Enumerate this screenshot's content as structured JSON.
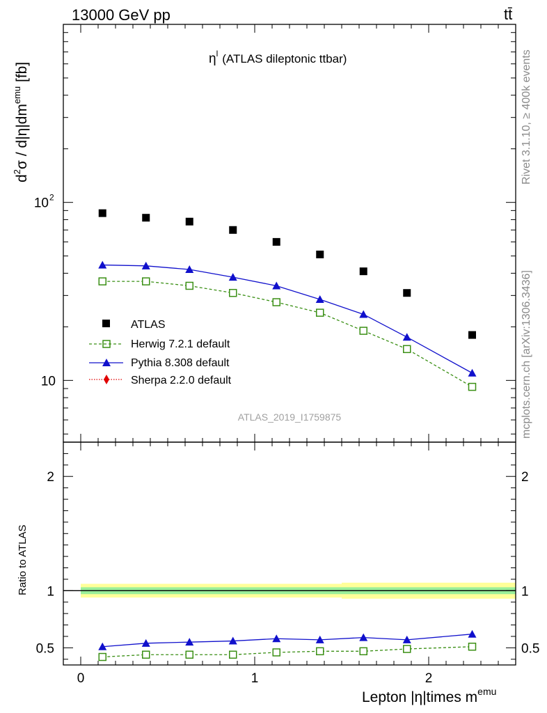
{
  "header": {
    "left": "13000 GeV pp",
    "right": "tt̄"
  },
  "side": {
    "rivet": "Rivet 3.1.10, ≥ 400k events",
    "mcplots": "mcplots.cern.ch [arXiv:1306.3436]"
  },
  "plot_title": {
    "symbol": "η",
    "sup": "l",
    "text": "(ATLAS dileptonic ttbar)"
  },
  "watermark": "ATLAS_2019_I1759875",
  "ylabel_main": {
    "p1": "d",
    "s1": "2",
    "p2": "σ / d|η|dm",
    "s2": "emu",
    "p3": " [fb]"
  },
  "ylabel_ratio": "Ratio to ATLAS",
  "xlabel": {
    "main": "Lepton |η|times m",
    "sup": "emu"
  },
  "legend": {
    "atlas": "ATLAS",
    "herwig": "Herwig 7.2.1 default",
    "pythia": "Pythia 8.308 default",
    "sherpa": "Sherpa 2.2.0 default"
  },
  "colors": {
    "atlas": "#000000",
    "herwig": "#3a8f14",
    "pythia": "#1010cc",
    "sherpa": "#e00000",
    "band_outer": "#ffff99",
    "band_inner": "#99ee99"
  },
  "chart_data": {
    "type": "scatter",
    "x": [
      0.125,
      0.375,
      0.625,
      0.875,
      1.125,
      1.375,
      1.625,
      1.875,
      2.25
    ],
    "xlim": [
      -0.1,
      2.5
    ],
    "x_ticks": [
      "0",
      "1",
      "2"
    ],
    "main": {
      "yscale": "log",
      "ylim": [
        4.5,
        1000
      ],
      "y_ticks": [
        "10",
        "10^2"
      ],
      "series": [
        {
          "name": "ATLAS",
          "values": [
            87,
            82,
            78,
            70,
            60,
            51,
            41,
            31,
            18
          ]
        },
        {
          "name": "Herwig 7.2.1 default",
          "values": [
            36,
            36,
            34,
            31,
            27.5,
            24,
            19,
            15,
            9.2
          ]
        },
        {
          "name": "Pythia 8.308 default",
          "values": [
            44.5,
            44,
            42,
            38,
            34,
            28.5,
            23.5,
            17.5,
            11
          ]
        },
        {
          "name": "Sherpa 2.2.0 default",
          "values": []
        }
      ]
    },
    "ratio": {
      "ylim": [
        0.35,
        2.3
      ],
      "y_ticks": [
        "0.5",
        "1",
        "2"
      ],
      "band_inner": 0.03,
      "band_outer": [
        0.06,
        0.06,
        0.06,
        0.06,
        0.06,
        0.06,
        0.07,
        0.07,
        0.07
      ],
      "series": [
        {
          "name": "Herwig 7.2.1 default",
          "values": [
            0.42,
            0.44,
            0.44,
            0.44,
            0.46,
            0.47,
            0.47,
            0.49,
            0.51
          ]
        },
        {
          "name": "Pythia 8.308 default",
          "values": [
            0.51,
            0.54,
            0.55,
            0.56,
            0.58,
            0.57,
            0.59,
            0.57,
            0.62
          ]
        }
      ]
    }
  }
}
